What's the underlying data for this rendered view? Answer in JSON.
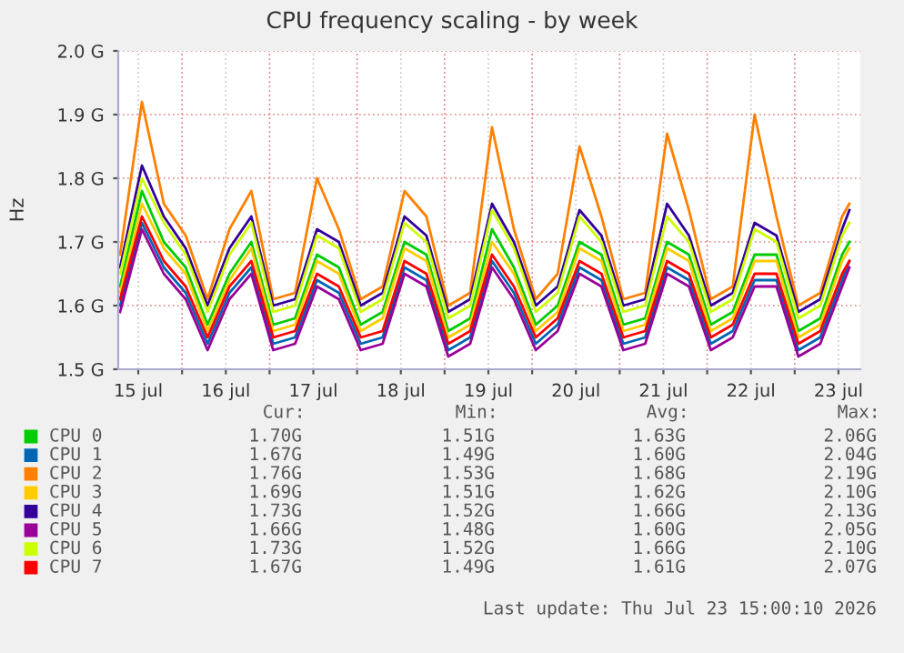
{
  "chart_data": {
    "type": "line",
    "title": "CPU frequency scaling - by week",
    "ylabel": "Hz",
    "x": [
      "2026-07-15T07:00",
      "2026-07-15T13:00",
      "2026-07-15T19:00",
      "2026-07-16T01:00",
      "2026-07-16T07:00",
      "2026-07-16T13:00",
      "2026-07-16T19:00",
      "2026-07-17T01:00",
      "2026-07-17T07:00",
      "2026-07-17T13:00",
      "2026-07-17T19:00",
      "2026-07-18T01:00",
      "2026-07-18T07:00",
      "2026-07-18T13:00",
      "2026-07-18T19:00",
      "2026-07-19T01:00",
      "2026-07-19T07:00",
      "2026-07-19T13:00",
      "2026-07-19T19:00",
      "2026-07-20T01:00",
      "2026-07-20T07:00",
      "2026-07-20T13:00",
      "2026-07-20T19:00",
      "2026-07-21T01:00",
      "2026-07-21T07:00",
      "2026-07-21T13:00",
      "2026-07-21T19:00",
      "2026-07-22T01:00",
      "2026-07-22T07:00",
      "2026-07-22T13:00",
      "2026-07-22T19:00",
      "2026-07-23T01:00",
      "2026-07-23T07:00",
      "2026-07-23T13:00",
      "2026-07-23T15:00"
    ],
    "series": [
      {
        "name": "CPU 0",
        "color": "#00cc00",
        "values": [
          1.63,
          1.78,
          1.7,
          1.66,
          1.57,
          1.65,
          1.7,
          1.57,
          1.58,
          1.68,
          1.66,
          1.57,
          1.59,
          1.7,
          1.68,
          1.56,
          1.58,
          1.72,
          1.66,
          1.57,
          1.6,
          1.7,
          1.68,
          1.57,
          1.58,
          1.7,
          1.68,
          1.57,
          1.59,
          1.68,
          1.68,
          1.56,
          1.58,
          1.68,
          1.7
        ]
      },
      {
        "name": "CPU 1",
        "color": "#0066b3",
        "values": [
          1.6,
          1.73,
          1.66,
          1.62,
          1.54,
          1.62,
          1.66,
          1.54,
          1.55,
          1.64,
          1.62,
          1.54,
          1.55,
          1.66,
          1.64,
          1.53,
          1.55,
          1.67,
          1.62,
          1.54,
          1.57,
          1.66,
          1.64,
          1.54,
          1.55,
          1.66,
          1.64,
          1.54,
          1.56,
          1.64,
          1.64,
          1.53,
          1.55,
          1.64,
          1.67
        ]
      },
      {
        "name": "CPU 2",
        "color": "#ff8000",
        "values": [
          1.68,
          1.92,
          1.76,
          1.71,
          1.61,
          1.72,
          1.78,
          1.61,
          1.62,
          1.8,
          1.72,
          1.61,
          1.63,
          1.78,
          1.74,
          1.6,
          1.62,
          1.88,
          1.72,
          1.61,
          1.65,
          1.85,
          1.74,
          1.61,
          1.62,
          1.87,
          1.75,
          1.61,
          1.63,
          1.9,
          1.74,
          1.6,
          1.62,
          1.74,
          1.76
        ]
      },
      {
        "name": "CPU 3",
        "color": "#ffcc00",
        "values": [
          1.62,
          1.76,
          1.69,
          1.65,
          1.56,
          1.64,
          1.69,
          1.56,
          1.57,
          1.67,
          1.65,
          1.56,
          1.58,
          1.69,
          1.67,
          1.55,
          1.57,
          1.7,
          1.65,
          1.56,
          1.59,
          1.69,
          1.67,
          1.56,
          1.57,
          1.69,
          1.67,
          1.56,
          1.58,
          1.67,
          1.67,
          1.55,
          1.57,
          1.67,
          1.69
        ]
      },
      {
        "name": "CPU 4",
        "color": "#330099",
        "values": [
          1.66,
          1.82,
          1.74,
          1.69,
          1.6,
          1.69,
          1.74,
          1.6,
          1.61,
          1.72,
          1.7,
          1.6,
          1.62,
          1.74,
          1.71,
          1.59,
          1.61,
          1.76,
          1.7,
          1.6,
          1.63,
          1.75,
          1.71,
          1.6,
          1.61,
          1.76,
          1.71,
          1.6,
          1.62,
          1.73,
          1.71,
          1.59,
          1.61,
          1.72,
          1.75
        ]
      },
      {
        "name": "CPU 5",
        "color": "#990099",
        "values": [
          1.59,
          1.72,
          1.65,
          1.61,
          1.53,
          1.61,
          1.65,
          1.53,
          1.54,
          1.63,
          1.61,
          1.53,
          1.54,
          1.65,
          1.63,
          1.52,
          1.54,
          1.66,
          1.61,
          1.53,
          1.56,
          1.65,
          1.63,
          1.53,
          1.54,
          1.65,
          1.63,
          1.53,
          1.55,
          1.63,
          1.63,
          1.52,
          1.54,
          1.63,
          1.66
        ]
      },
      {
        "name": "CPU 6",
        "color": "#ccff00",
        "values": [
          1.65,
          1.8,
          1.73,
          1.68,
          1.59,
          1.68,
          1.73,
          1.59,
          1.6,
          1.71,
          1.69,
          1.59,
          1.61,
          1.73,
          1.7,
          1.58,
          1.6,
          1.75,
          1.69,
          1.59,
          1.62,
          1.74,
          1.7,
          1.59,
          1.6,
          1.74,
          1.7,
          1.59,
          1.61,
          1.72,
          1.7,
          1.58,
          1.6,
          1.71,
          1.73
        ]
      },
      {
        "name": "CPU 7",
        "color": "#ff0000",
        "values": [
          1.61,
          1.74,
          1.67,
          1.63,
          1.55,
          1.63,
          1.67,
          1.55,
          1.56,
          1.65,
          1.63,
          1.55,
          1.56,
          1.67,
          1.65,
          1.54,
          1.56,
          1.68,
          1.63,
          1.55,
          1.58,
          1.67,
          1.65,
          1.55,
          1.56,
          1.67,
          1.65,
          1.55,
          1.57,
          1.65,
          1.65,
          1.54,
          1.56,
          1.65,
          1.67
        ]
      }
    ],
    "xlim": [
      "2026-07-15T06:30",
      "2026-07-23T18:00"
    ],
    "xticks": [
      {
        "value": "2026-07-15T12:00",
        "label": "15 jul"
      },
      {
        "value": "2026-07-16T00:00",
        "label": null
      },
      {
        "value": "2026-07-16T12:00",
        "label": "16 jul"
      },
      {
        "value": "2026-07-17T00:00",
        "label": null
      },
      {
        "value": "2026-07-17T12:00",
        "label": "17 jul"
      },
      {
        "value": "2026-07-18T00:00",
        "label": null
      },
      {
        "value": "2026-07-18T12:00",
        "label": "18 jul"
      },
      {
        "value": "2026-07-19T00:00",
        "label": null
      },
      {
        "value": "2026-07-19T12:00",
        "label": "19 jul"
      },
      {
        "value": "2026-07-20T00:00",
        "label": null
      },
      {
        "value": "2026-07-20T12:00",
        "label": "20 jul"
      },
      {
        "value": "2026-07-21T00:00",
        "label": null
      },
      {
        "value": "2026-07-21T12:00",
        "label": "21 jul"
      },
      {
        "value": "2026-07-22T00:00",
        "label": null
      },
      {
        "value": "2026-07-22T12:00",
        "label": "22 jul"
      },
      {
        "value": "2026-07-23T00:00",
        "label": null
      },
      {
        "value": "2026-07-23T12:00",
        "label": "23 jul"
      }
    ],
    "ylim": [
      1.5,
      2.0
    ],
    "yticks": [
      {
        "value": 1.5,
        "label": "1.5 G"
      },
      {
        "value": 1.6,
        "label": "1.6 G"
      },
      {
        "value": 1.7,
        "label": "1.7 G"
      },
      {
        "value": 1.8,
        "label": "1.8 G"
      },
      {
        "value": 1.9,
        "label": "1.9 G"
      },
      {
        "value": 2.0,
        "label": "2.0 G"
      }
    ],
    "grid": true,
    "legend": "bottom",
    "annotations": [
      "Cur:",
      "Min:",
      "Avg:",
      "Max:",
      "1.70G",
      "1.51G",
      "1.63G",
      "2.06G",
      "1.67G",
      "1.49G",
      "1.60G",
      "2.04G",
      "1.76G",
      "1.53G",
      "1.68G",
      "2.19G",
      "1.69G",
      "1.51G",
      "1.62G",
      "2.10G",
      "1.73G",
      "1.52G",
      "1.66G",
      "2.13G",
      "1.66G",
      "1.48G",
      "1.60G",
      "2.05G",
      "1.73G",
      "1.52G",
      "1.66G",
      "2.10G",
      "1.67G",
      "1.49G",
      "1.61G",
      "2.07G",
      "Last update: Thu Jul 23 15:00:10 2026"
    ]
  }
}
